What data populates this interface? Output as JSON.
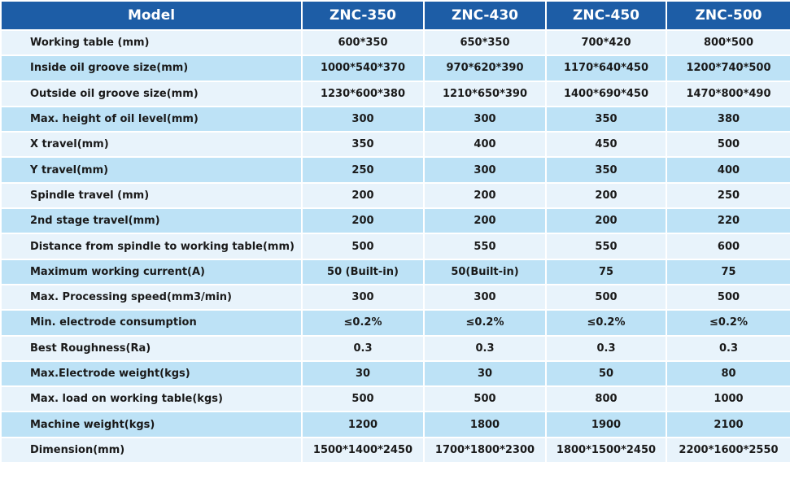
{
  "table": {
    "header": [
      "Model",
      "ZNC-350",
      "ZNC-430",
      "ZNC-450",
      "ZNC-500"
    ],
    "rows": [
      [
        "Working table (mm)",
        "600*350",
        "650*350",
        "700*420",
        "800*500"
      ],
      [
        "Inside oil groove size(mm)",
        "1000*540*370",
        "970*620*390",
        "1170*640*450",
        "1200*740*500"
      ],
      [
        "Outside oil groove size(mm)",
        "1230*600*380",
        "1210*650*390",
        "1400*690*450",
        "1470*800*490"
      ],
      [
        "Max. height of oil level(mm)",
        "300",
        "300",
        "350",
        "380"
      ],
      [
        "X travel(mm)",
        "350",
        "400",
        "450",
        "500"
      ],
      [
        "Y travel(mm)",
        "250",
        "300",
        "350",
        "400"
      ],
      [
        "Spindle travel  (mm)",
        "200",
        "200",
        "200",
        "250"
      ],
      [
        "2nd stage travel(mm)",
        "200",
        "200",
        "200",
        "220"
      ],
      [
        "Distance from spindle to working table(mm)",
        "500",
        "550",
        "550",
        "600"
      ],
      [
        "Maximum working current(A)",
        "50 (Built-in)",
        "50(Built-in)",
        "75",
        "75"
      ],
      [
        "Max. Processing speed(mm3/min)",
        "300",
        "300",
        "500",
        "500"
      ],
      [
        "Min. electrode consumption",
        "≤0.2%",
        "≤0.2%",
        "≤0.2%",
        "≤0.2%"
      ],
      [
        "Best Roughness(Ra)",
        "0.3",
        "0.3",
        "0.3",
        "0.3"
      ],
      [
        "Max.Electrode weight(kgs)",
        "30",
        "30",
        "50",
        "80"
      ],
      [
        "Max. load on working table(kgs)",
        "500",
        "500",
        "800",
        "1000"
      ],
      [
        "Machine weight(kgs)",
        "1200",
        "1800",
        "1900",
        "2100"
      ],
      [
        "Dimension(mm)",
        "1500*1400*2450",
        "1700*1800*2300",
        "1800*1500*2450",
        "2200*1600*2550"
      ]
    ]
  }
}
